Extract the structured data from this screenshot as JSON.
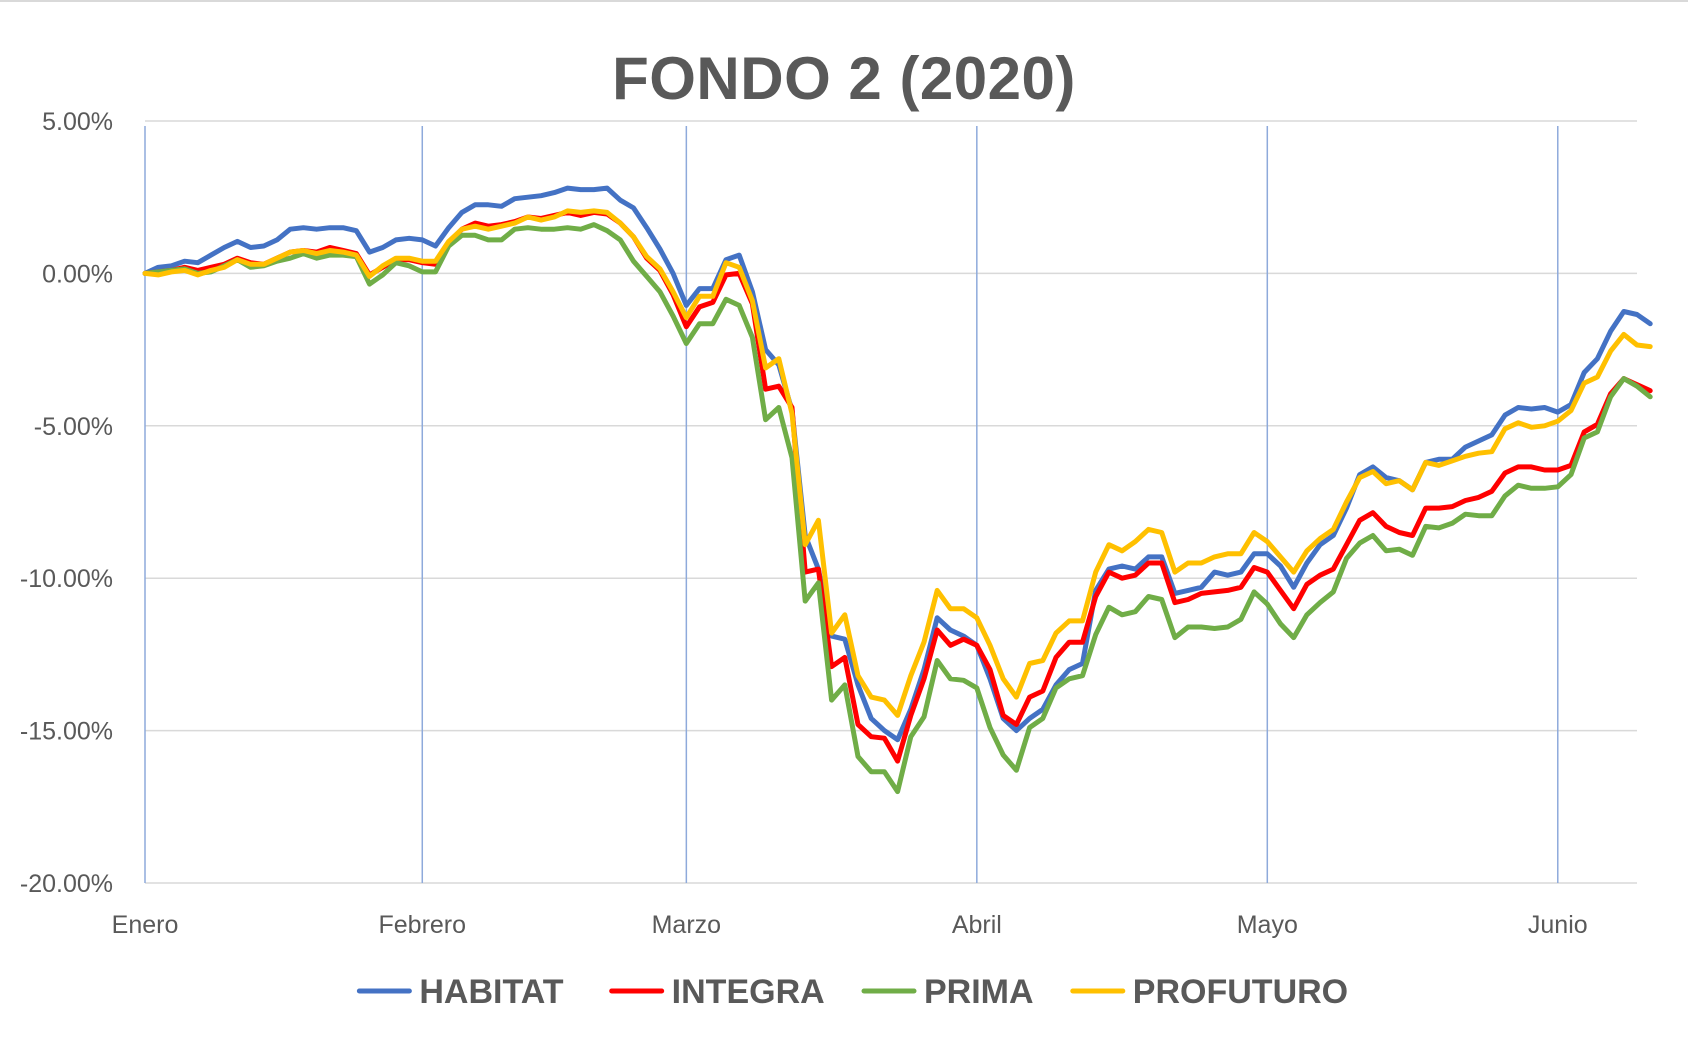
{
  "chart_data": {
    "type": "line",
    "title": "FONDO 2 (2020)",
    "xlabel": "",
    "ylabel": "",
    "ylim": [
      -20,
      5
    ],
    "yticks": [
      5,
      0,
      -5,
      -10,
      -15,
      -20
    ],
    "ytick_labels": [
      "5.00%",
      "0.00%",
      "-5.00%",
      "-10.00%",
      "-15.00%",
      "-20.00%"
    ],
    "x_range": [
      0,
      113
    ],
    "month_positions": [
      0,
      21,
      41,
      63,
      85,
      107
    ],
    "x_tick_labels": [
      "Enero",
      "Febrero",
      "Marzo",
      "Abril",
      "Mayo",
      "Junio"
    ],
    "grid": true,
    "legend_position": "bottom",
    "series": [
      {
        "name": "HABITAT",
        "color": "#4472C4",
        "values": [
          0.0,
          0.2,
          0.25,
          0.4,
          0.35,
          0.6,
          0.85,
          1.05,
          0.85,
          0.9,
          1.1,
          1.45,
          1.5,
          1.45,
          1.5,
          1.5,
          1.4,
          0.7,
          0.85,
          1.1,
          1.15,
          1.1,
          0.9,
          1.5,
          2.0,
          2.25,
          2.25,
          2.2,
          2.45,
          2.5,
          2.55,
          2.65,
          2.8,
          2.75,
          2.75,
          2.8,
          2.4,
          2.15,
          1.5,
          0.8,
          0.0,
          -1.05,
          -0.5,
          -0.5,
          0.45,
          0.6,
          -0.6,
          -2.5,
          -3.0,
          -4.5,
          -8.6,
          -9.7,
          -11.9,
          -12.0,
          -13.5,
          -14.6,
          -15.0,
          -15.3,
          -14.3,
          -13.0,
          -11.3,
          -11.7,
          -11.9,
          -12.2,
          -13.3,
          -14.6,
          -15.0,
          -14.6,
          -14.3,
          -13.5,
          -13.0,
          -12.8,
          -10.4,
          -9.7,
          -9.6,
          -9.7,
          -9.3,
          -9.3,
          -10.5,
          -10.4,
          -10.3,
          -9.8,
          -9.9,
          -9.8,
          -9.2,
          -9.2,
          -9.6,
          -10.3,
          -9.5,
          -8.9,
          -8.6,
          -7.7,
          -6.6,
          -6.35,
          -6.7,
          -6.8,
          -7.1,
          -6.2,
          -6.1,
          -6.1,
          -5.7,
          -5.5,
          -5.3,
          -4.65,
          -4.4,
          -4.45,
          -4.4,
          -4.55,
          -4.3,
          -3.25,
          -2.8,
          -1.9,
          -1.25,
          -1.35,
          -1.65
        ]
      },
      {
        "name": "INTEGRA",
        "color": "#FF0000",
        "values": [
          0.0,
          0.05,
          0.1,
          0.2,
          0.1,
          0.2,
          0.3,
          0.5,
          0.35,
          0.3,
          0.5,
          0.7,
          0.75,
          0.7,
          0.85,
          0.75,
          0.65,
          -0.05,
          0.2,
          0.45,
          0.45,
          0.35,
          0.3,
          1.0,
          1.45,
          1.65,
          1.55,
          1.6,
          1.7,
          1.85,
          1.8,
          1.9,
          2.0,
          1.9,
          2.0,
          1.95,
          1.65,
          1.2,
          0.5,
          0.1,
          -0.7,
          -1.75,
          -1.1,
          -0.95,
          -0.05,
          0.0,
          -1.0,
          -3.8,
          -3.7,
          -4.4,
          -9.8,
          -9.7,
          -12.9,
          -12.6,
          -14.8,
          -15.2,
          -15.25,
          -16.0,
          -14.5,
          -13.3,
          -11.7,
          -12.2,
          -12.0,
          -12.2,
          -13.0,
          -14.5,
          -14.8,
          -13.9,
          -13.7,
          -12.6,
          -12.1,
          -12.1,
          -10.6,
          -9.8,
          -10.0,
          -9.9,
          -9.5,
          -9.5,
          -10.8,
          -10.7,
          -10.5,
          -10.45,
          -10.4,
          -10.3,
          -9.65,
          -9.8,
          -10.4,
          -11.0,
          -10.2,
          -9.9,
          -9.7,
          -8.9,
          -8.1,
          -7.85,
          -8.3,
          -8.5,
          -8.6,
          -7.7,
          -7.7,
          -7.65,
          -7.45,
          -7.35,
          -7.15,
          -6.55,
          -6.35,
          -6.35,
          -6.45,
          -6.45,
          -6.3,
          -5.2,
          -4.95,
          -3.95,
          -3.45,
          -3.65,
          -3.85
        ]
      },
      {
        "name": "PRIMA",
        "color": "#70AD47",
        "values": [
          0.0,
          0.05,
          0.1,
          0.15,
          0.0,
          0.05,
          0.25,
          0.45,
          0.2,
          0.25,
          0.4,
          0.5,
          0.65,
          0.5,
          0.6,
          0.6,
          0.55,
          -0.35,
          -0.05,
          0.35,
          0.25,
          0.05,
          0.05,
          0.9,
          1.25,
          1.25,
          1.1,
          1.1,
          1.45,
          1.5,
          1.45,
          1.45,
          1.5,
          1.45,
          1.6,
          1.4,
          1.1,
          0.4,
          -0.1,
          -0.6,
          -1.4,
          -2.3,
          -1.65,
          -1.65,
          -0.85,
          -1.05,
          -2.1,
          -4.8,
          -4.4,
          -6.05,
          -10.75,
          -10.15,
          -14.0,
          -13.5,
          -15.85,
          -16.35,
          -16.35,
          -17.0,
          -15.2,
          -14.55,
          -12.7,
          -13.3,
          -13.35,
          -13.6,
          -14.9,
          -15.8,
          -16.3,
          -14.9,
          -14.6,
          -13.6,
          -13.3,
          -13.2,
          -11.85,
          -10.95,
          -11.2,
          -11.1,
          -10.6,
          -10.7,
          -11.95,
          -11.6,
          -11.6,
          -11.65,
          -11.6,
          -11.35,
          -10.45,
          -10.85,
          -11.5,
          -11.95,
          -11.2,
          -10.8,
          -10.45,
          -9.35,
          -8.85,
          -8.6,
          -9.1,
          -9.05,
          -9.25,
          -8.3,
          -8.35,
          -8.2,
          -7.9,
          -7.95,
          -7.95,
          -7.3,
          -6.95,
          -7.05,
          -7.05,
          -7.0,
          -6.6,
          -5.4,
          -5.2,
          -4.05,
          -3.45,
          -3.7,
          -4.05
        ]
      },
      {
        "name": "PROFUTURO",
        "color": "#FFC000",
        "values": [
          0.0,
          -0.05,
          0.05,
          0.1,
          -0.05,
          0.1,
          0.2,
          0.45,
          0.3,
          0.3,
          0.5,
          0.7,
          0.75,
          0.65,
          0.75,
          0.7,
          0.6,
          -0.1,
          0.25,
          0.5,
          0.5,
          0.4,
          0.4,
          1.05,
          1.45,
          1.55,
          1.45,
          1.55,
          1.65,
          1.85,
          1.75,
          1.85,
          2.05,
          2.0,
          2.05,
          2.0,
          1.65,
          1.2,
          0.55,
          0.15,
          -0.6,
          -1.45,
          -0.75,
          -0.75,
          0.35,
          0.2,
          -0.9,
          -3.1,
          -2.8,
          -4.6,
          -8.9,
          -8.1,
          -11.8,
          -11.2,
          -13.2,
          -13.9,
          -14.0,
          -14.5,
          -13.2,
          -12.1,
          -10.4,
          -11.0,
          -11.0,
          -11.3,
          -12.2,
          -13.3,
          -13.9,
          -12.8,
          -12.7,
          -11.8,
          -11.4,
          -11.4,
          -9.8,
          -8.9,
          -9.1,
          -8.8,
          -8.4,
          -8.5,
          -9.8,
          -9.5,
          -9.5,
          -9.3,
          -9.2,
          -9.2,
          -8.5,
          -8.8,
          -9.3,
          -9.8,
          -9.1,
          -8.7,
          -8.4,
          -7.5,
          -6.7,
          -6.5,
          -6.9,
          -6.8,
          -7.1,
          -6.2,
          -6.3,
          -6.15,
          -6.0,
          -5.9,
          -5.85,
          -5.1,
          -4.9,
          -5.05,
          -5.0,
          -4.85,
          -4.5,
          -3.6,
          -3.4,
          -2.55,
          -2.0,
          -2.35,
          -2.4
        ]
      }
    ]
  }
}
